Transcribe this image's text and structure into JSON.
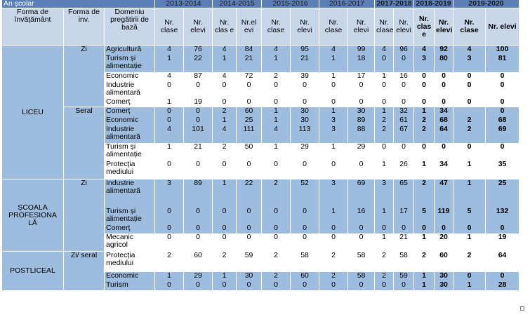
{
  "header": {
    "an_scolar": "An școlar",
    "years": [
      "2013-2014",
      "2014-2015",
      "2015-2016",
      "2016-2017",
      "2017-2018",
      "2018-2019",
      "2019-2020"
    ],
    "forma_invatamant": "Forma de învățământ",
    "forma_inv": "Forma de inv.",
    "domeniu": "Domeniu pregătirii de bază",
    "sub": {
      "y2013": [
        "Nr. clase",
        "Nr. elevi"
      ],
      "y2014": [
        "Nr. clas e",
        "Nr.el evi"
      ],
      "y2015": [
        "Nr. clase",
        "Nr. elevi"
      ],
      "y2016": [
        "Nr. clase",
        "Nr. elevi"
      ],
      "y2017": [
        "Nr. clase",
        "Nr. elevi"
      ],
      "y2018": [
        "Nr. clas e",
        "Nr. elevi"
      ],
      "y2019": [
        "Nr. clase",
        "Nr. elevi"
      ]
    }
  },
  "groups": {
    "liceu": "LICEU",
    "scoala": "ȘCOALA PROFESIONA LĂ",
    "postliceal": "POSTLICEAL",
    "zi": "Zi",
    "seral": "Seral",
    "zi2": "Zi",
    "ziseral": "Zi/ seral"
  },
  "rows": [
    {
      "domain": "Agricultură",
      "v": [
        "4",
        "76",
        "4",
        "84",
        "4",
        "95",
        "4",
        "99",
        "4",
        "96",
        "4",
        "92",
        "4",
        "100"
      ]
    },
    {
      "domain": "Turism și alimentație",
      "v": [
        "1",
        "22",
        "1",
        "21",
        "1",
        "21",
        "1",
        "18",
        "0",
        "0",
        "3",
        "80",
        "3",
        "81"
      ]
    },
    {
      "domain": "Economic",
      "v": [
        "4",
        "87",
        "4",
        "72",
        "2",
        "39",
        "1",
        "17",
        "1",
        "16",
        "0",
        "0",
        "0",
        "0"
      ]
    },
    {
      "domain": "Industrie alimentară",
      "v": [
        "0",
        "0",
        "0",
        "0",
        "0",
        "0",
        "0",
        "0",
        "0",
        "0",
        "0",
        "0",
        "0",
        "0"
      ]
    },
    {
      "domain": "Comerț",
      "v": [
        "1",
        "19",
        "0",
        "0",
        "0",
        "0",
        "0",
        "0",
        "0",
        "0",
        "0",
        "0",
        "0",
        "0"
      ]
    },
    {
      "domain": "Comerț",
      "v": [
        "0",
        "0",
        "2",
        "60",
        "1",
        "30",
        "1",
        "30",
        "1",
        "32",
        "1",
        "34",
        "",
        "0"
      ]
    },
    {
      "domain": "Economic",
      "v": [
        "0",
        "0",
        "1",
        "25",
        "1",
        "30",
        "3",
        "89",
        "2",
        "61",
        "2",
        "68",
        "2",
        "68"
      ]
    },
    {
      "domain": "Industrie alimentară",
      "v": [
        "4",
        "101",
        "4",
        "111",
        "4",
        "113",
        "3",
        "88",
        "2",
        "67",
        "2",
        "64",
        "2",
        "69"
      ]
    },
    {
      "domain": "Turism și alimentație",
      "v": [
        "1",
        "21",
        "2",
        "50",
        "1",
        "29",
        "1",
        "29",
        "0",
        "0",
        "0",
        "0",
        "0",
        "0"
      ]
    },
    {
      "domain": "Protecția mediului",
      "v": [
        "0",
        "0",
        "0",
        "0",
        "0",
        "0",
        "0",
        "0",
        "1",
        "26",
        "1",
        "34",
        "1",
        "35"
      ]
    },
    {
      "domain": "Industrie alimentară",
      "v": [
        "3",
        "89",
        "1",
        "22",
        "2",
        "52",
        "3",
        "69",
        "3",
        "65",
        "2",
        "47",
        "1",
        "25"
      ]
    },
    {
      "domain": "Turism și alimentație",
      "v": [
        "0",
        "0",
        "0",
        "0",
        "0",
        "0",
        "1",
        "16",
        "1",
        "17",
        "5",
        "119",
        "5",
        "132"
      ]
    },
    {
      "domain": "Comerț",
      "v": [
        "0",
        "0",
        "0",
        "0",
        "0",
        "0",
        "0",
        "0",
        "0",
        "0",
        "0",
        "0",
        "0",
        "0"
      ]
    },
    {
      "domain": "Mecanic agricol",
      "v": [
        "0",
        "0",
        "0",
        "0",
        "0",
        "0",
        "0",
        "0",
        "1",
        "21",
        "1",
        "20",
        "1",
        "19"
      ]
    },
    {
      "domain": "Protecția mediului",
      "v": [
        "2",
        "60",
        "2",
        "59",
        "2",
        "58",
        "2",
        "58",
        "2",
        "58",
        "2",
        "60",
        "2",
        "64"
      ]
    },
    {
      "domain": "Economic",
      "v": [
        "1",
        "29",
        "1",
        "30",
        "2",
        "60",
        "2",
        "58",
        "2",
        "59",
        "1",
        "30",
        "0",
        "0"
      ]
    },
    {
      "domain": "Turism",
      "v": [
        "0",
        "0",
        "0",
        "0",
        "0",
        "0",
        "0",
        "0",
        "0",
        "0",
        "1",
        "30",
        "1",
        "28"
      ]
    }
  ]
}
